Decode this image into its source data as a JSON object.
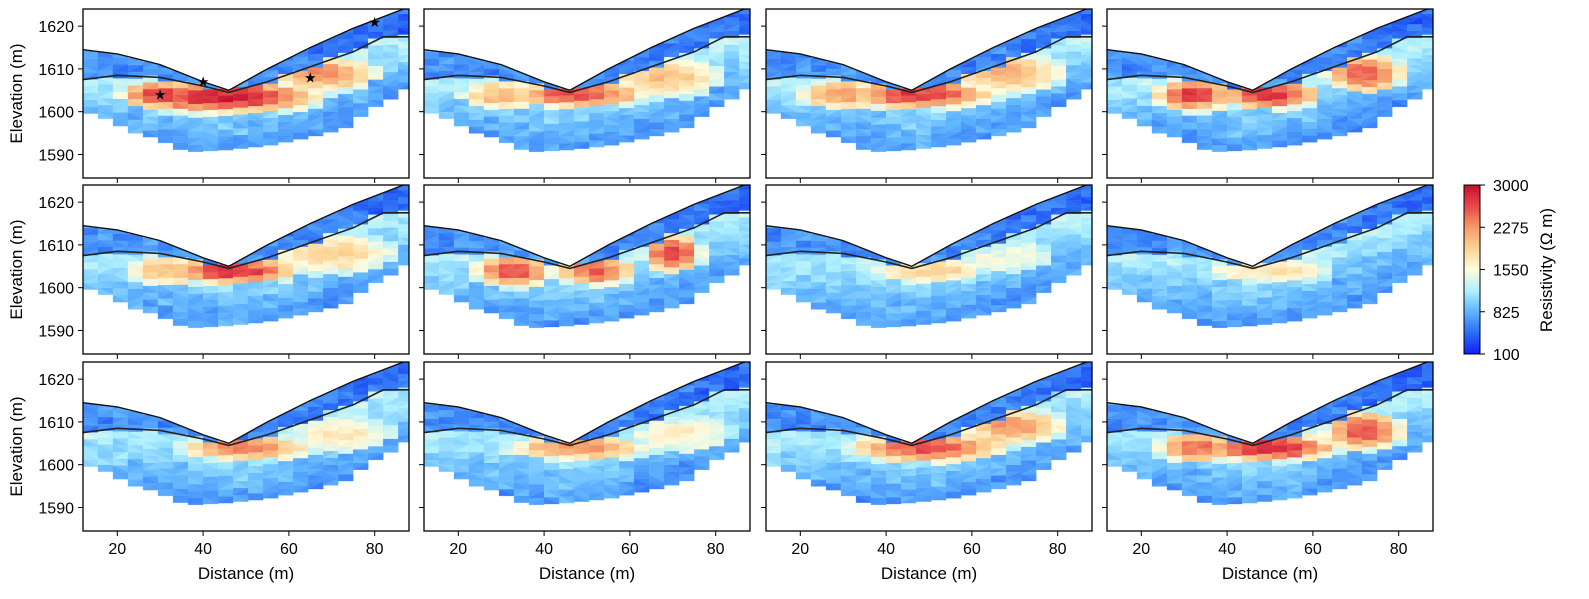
{
  "chart_data": {
    "type": "heatmap",
    "layout": {
      "rows": 3,
      "cols": 4
    },
    "xlabel": "Distance (m)",
    "ylabel": "Elevation (m)",
    "xlim": [
      12,
      88
    ],
    "ylim": [
      1584.5,
      1624
    ],
    "xticks": [
      20,
      40,
      60,
      80
    ],
    "yticks": [
      1590,
      1600,
      1610,
      1620
    ],
    "surface_profile": [
      [
        12,
        1614.5
      ],
      [
        20,
        1613.5
      ],
      [
        30,
        1611
      ],
      [
        40,
        1607
      ],
      [
        46,
        1605
      ],
      [
        55,
        1610
      ],
      [
        65,
        1615
      ],
      [
        75,
        1619.5
      ],
      [
        88,
        1624.5
      ]
    ],
    "interface_profile": [
      [
        12,
        1607.5
      ],
      [
        20,
        1608.5
      ],
      [
        30,
        1608
      ],
      [
        40,
        1606
      ],
      [
        46,
        1604.5
      ],
      [
        55,
        1607
      ],
      [
        65,
        1610.5
      ],
      [
        75,
        1614
      ],
      [
        82,
        1617.5
      ],
      [
        88,
        1617.5
      ]
    ],
    "lower_boundary": [
      [
        12,
        1600
      ],
      [
        16,
        1599
      ],
      [
        20,
        1597
      ],
      [
        24,
        1595
      ],
      [
        28,
        1594
      ],
      [
        33,
        1592
      ],
      [
        36,
        1590.5
      ],
      [
        45,
        1591
      ],
      [
        55,
        1592
      ],
      [
        65,
        1594
      ],
      [
        73,
        1596
      ],
      [
        77,
        1599
      ],
      [
        80,
        1601
      ],
      [
        86,
        1604
      ],
      [
        88,
        1606
      ]
    ],
    "markers": [
      {
        "panel": 0,
        "x": 30,
        "y": 1604,
        "symbol": "star"
      },
      {
        "panel": 0,
        "x": 40,
        "y": 1607,
        "symbol": "star"
      },
      {
        "panel": 0,
        "x": 65,
        "y": 1608,
        "symbol": "star"
      },
      {
        "panel": 0,
        "x": 80,
        "y": 1621,
        "symbol": "star"
      }
    ],
    "panels": [
      {
        "anomalies": [
          {
            "x": 45,
            "y": 1603.5,
            "rx": 20,
            "ry": 3.4,
            "level": 2900
          },
          {
            "x": 68,
            "y": 1609,
            "rx": 11,
            "ry": 3.5,
            "level": 2300
          },
          {
            "x": 30,
            "y": 1604,
            "rx": 8,
            "ry": 3,
            "level": 2700
          }
        ]
      },
      {
        "anomalies": [
          {
            "x": 48,
            "y": 1604,
            "rx": 14,
            "ry": 2.6,
            "level": 2650
          },
          {
            "x": 68,
            "y": 1608,
            "rx": 11,
            "ry": 4,
            "level": 2000
          },
          {
            "x": 30,
            "y": 1604,
            "rx": 8,
            "ry": 3,
            "level": 2050
          }
        ]
      },
      {
        "anomalies": [
          {
            "x": 48,
            "y": 1604,
            "rx": 15,
            "ry": 3,
            "level": 2750
          },
          {
            "x": 68,
            "y": 1609,
            "rx": 12,
            "ry": 4,
            "level": 2100
          },
          {
            "x": 30,
            "y": 1604,
            "rx": 9,
            "ry": 3,
            "level": 2250
          }
        ]
      },
      {
        "anomalies": [
          {
            "x": 32,
            "y": 1604,
            "rx": 8,
            "ry": 3.5,
            "level": 2700
          },
          {
            "x": 50,
            "y": 1604,
            "rx": 10,
            "ry": 3,
            "level": 2800
          },
          {
            "x": 72,
            "y": 1609,
            "rx": 8,
            "ry": 4,
            "level": 2550
          }
        ]
      },
      {
        "anomalies": [
          {
            "x": 47,
            "y": 1604,
            "rx": 13,
            "ry": 2.8,
            "level": 2800
          },
          {
            "x": 70,
            "y": 1608,
            "rx": 12,
            "ry": 4,
            "level": 1900
          },
          {
            "x": 32,
            "y": 1604,
            "rx": 8,
            "ry": 3,
            "level": 2100
          }
        ]
      },
      {
        "anomalies": [
          {
            "x": 33,
            "y": 1604,
            "rx": 8,
            "ry": 3.5,
            "level": 2600
          },
          {
            "x": 52,
            "y": 1604,
            "rx": 8,
            "ry": 3,
            "level": 2600
          },
          {
            "x": 70,
            "y": 1608,
            "rx": 6,
            "ry": 4,
            "level": 2700
          }
        ]
      },
      {
        "anomalies": [
          {
            "x": 50,
            "y": 1604,
            "rx": 11,
            "ry": 2.5,
            "level": 1950
          },
          {
            "x": 68,
            "y": 1607,
            "rx": 9,
            "ry": 3,
            "level": 1500
          }
        ]
      },
      {
        "anomalies": [
          {
            "x": 50,
            "y": 1604,
            "rx": 12,
            "ry": 2.5,
            "level": 1800
          }
        ]
      },
      {
        "anomalies": [
          {
            "x": 50,
            "y": 1604,
            "rx": 13,
            "ry": 2.6,
            "level": 2450
          },
          {
            "x": 72,
            "y": 1607,
            "rx": 10,
            "ry": 3.5,
            "level": 1700
          }
        ]
      },
      {
        "anomalies": [
          {
            "x": 48,
            "y": 1604,
            "rx": 14,
            "ry": 2.5,
            "level": 2350
          },
          {
            "x": 72,
            "y": 1607,
            "rx": 10,
            "ry": 3.5,
            "level": 1650
          }
        ]
      },
      {
        "anomalies": [
          {
            "x": 50,
            "y": 1604,
            "rx": 16,
            "ry": 3,
            "level": 2600
          },
          {
            "x": 70,
            "y": 1609,
            "rx": 10,
            "ry": 3.5,
            "level": 2300
          }
        ]
      },
      {
        "anomalies": [
          {
            "x": 50,
            "y": 1604,
            "rx": 14,
            "ry": 2.8,
            "level": 2850
          },
          {
            "x": 33,
            "y": 1604,
            "rx": 8,
            "ry": 3,
            "level": 2550
          },
          {
            "x": 72,
            "y": 1608,
            "rx": 8,
            "ry": 4,
            "level": 2600
          }
        ]
      }
    ],
    "background": {
      "top_layer": 650,
      "near_surface_right": 450,
      "mid_layer": 1250,
      "deep_layer": 700
    },
    "colorbar": {
      "label": "Resistivity (Ω m)",
      "range": [
        100,
        3000
      ],
      "ticks": [
        100,
        825,
        1550,
        2275,
        3000
      ],
      "tick_labels": [
        "100",
        "825",
        "1550",
        "2275",
        "3000"
      ],
      "colormap": [
        "#1020f5",
        "#2a6cf5",
        "#5fb4ff",
        "#aef0ff",
        "#fffbdc",
        "#fcd394",
        "#f59a68",
        "#e8484a",
        "#c4102c"
      ]
    }
  }
}
